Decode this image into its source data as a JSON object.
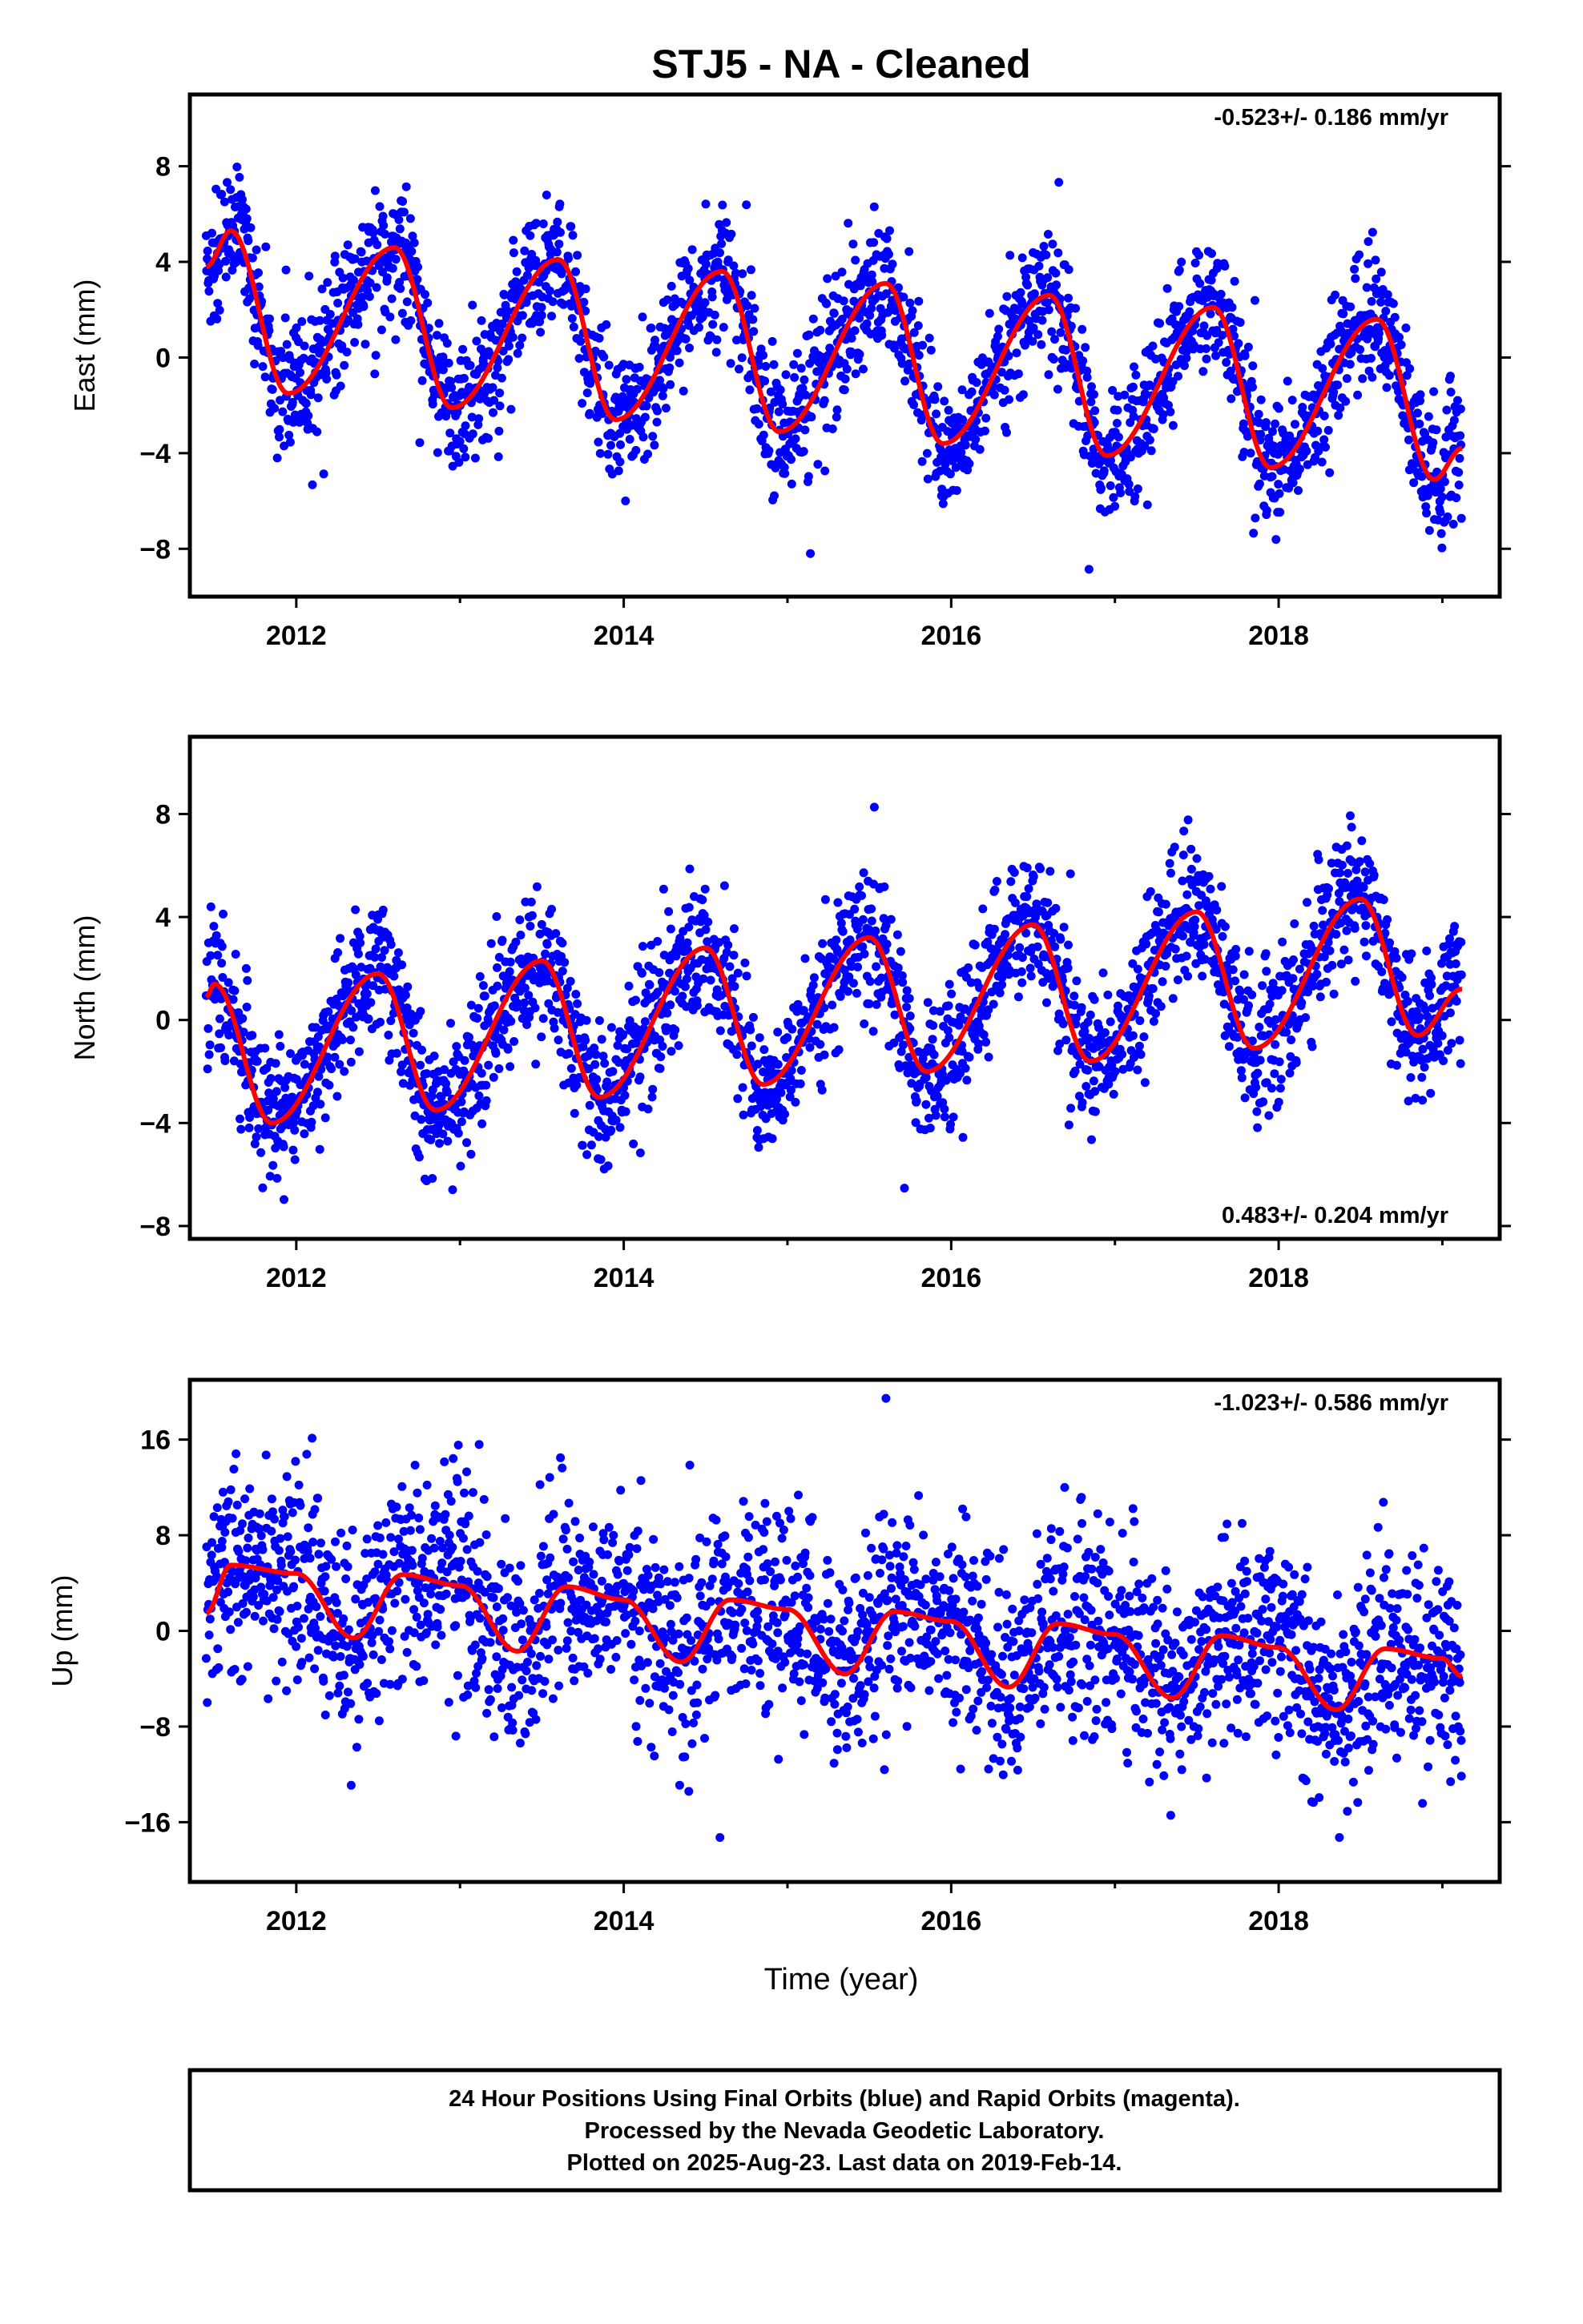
{
  "title": "STJ5  - NA - Cleaned",
  "colors": {
    "points": "#0000ff",
    "model": "#ff0000",
    "frame": "#000000"
  },
  "xaxis": {
    "label": "Time (year)",
    "range": [
      2011.35,
      2019.35
    ],
    "ticks": [
      2012,
      2014,
      2016,
      2018
    ],
    "tick_labels": [
      "2012",
      "2014",
      "2016",
      "2018"
    ]
  },
  "panels": [
    {
      "component": "east",
      "ylabel": "East (mm)",
      "ylim": [
        -10,
        11
      ],
      "yticks": [
        -8,
        -4,
        0,
        4,
        8
      ],
      "ytick_labels": [
        "−8",
        "−4",
        "0",
        "4",
        "8"
      ],
      "rate": "-0.523+/- 0.186 mm/yr",
      "rate_position": "top-right"
    },
    {
      "component": "north",
      "ylabel": "North (mm)",
      "ylim": [
        -8.5,
        11
      ],
      "yticks": [
        -8,
        -4,
        0,
        4,
        8
      ],
      "ytick_labels": [
        "−8",
        "−4",
        "0",
        "4",
        "8"
      ],
      "rate": "0.483+/- 0.204 mm/yr",
      "rate_position": "bottom-right"
    },
    {
      "component": "up",
      "ylabel": "Up (mm)",
      "ylim": [
        -21,
        21
      ],
      "yticks": [
        -16,
        -8,
        0,
        8,
        16
      ],
      "ytick_labels": [
        "−16",
        "−8",
        "0",
        "8",
        "16"
      ],
      "rate": "-1.023+/- 0.586 mm/yr",
      "rate_position": "top-right"
    }
  ],
  "footer": {
    "line1": "24 Hour Positions Using Final Orbits (blue) and Rapid Orbits (magenta).",
    "line2": "Processed by the Nevada Geodetic Laboratory.",
    "line3": "Plotted on 2025-Aug-23. Last data on 2019-Feb-14."
  },
  "chart_data": {
    "type": "scatter",
    "x_range": [
      2011.45,
      2019.12
    ],
    "series": [
      {
        "component": "east",
        "model_x": [
          2011.45,
          2011.6,
          2011.95,
          2012.6,
          2012.95,
          2013.6,
          2013.95,
          2014.6,
          2014.95,
          2015.6,
          2015.95,
          2016.6,
          2016.95,
          2017.6,
          2017.95,
          2018.6,
          2018.95,
          2019.12
        ],
        "model_y": [
          3.8,
          5.3,
          -1.5,
          4.6,
          -2.1,
          4.1,
          -2.6,
          3.6,
          -3.1,
          3.1,
          -3.6,
          2.6,
          -4.1,
          2.1,
          -4.6,
          1.6,
          -5.1,
          -3.8
        ],
        "scatter_sd": 1.35
      },
      {
        "component": "north",
        "model_x": [
          2011.45,
          2011.5,
          2011.85,
          2012.5,
          2012.85,
          2013.5,
          2013.85,
          2014.5,
          2014.85,
          2015.5,
          2015.85,
          2016.5,
          2016.85,
          2017.5,
          2017.85,
          2018.5,
          2018.85,
          2019.12
        ],
        "model_y": [
          0.9,
          1.4,
          -4.0,
          1.8,
          -3.5,
          2.3,
          -3.0,
          2.8,
          -2.5,
          3.2,
          -2.0,
          3.7,
          -1.6,
          4.2,
          -1.1,
          4.7,
          -0.6,
          1.2
        ],
        "scatter_sd": 1.35
      },
      {
        "component": "up",
        "model_x": [
          2011.45,
          2011.6,
          2012.0,
          2012.35,
          2012.65,
          2013.0,
          2013.35,
          2013.65,
          2014.0,
          2014.35,
          2014.65,
          2015.0,
          2015.35,
          2015.65,
          2016.0,
          2016.35,
          2016.65,
          2017.0,
          2017.35,
          2017.65,
          2018.0,
          2018.35,
          2018.65,
          2019.0,
          2019.12
        ],
        "model_y": [
          1.5,
          5.5,
          4.8,
          -0.6,
          4.7,
          3.8,
          -1.7,
          3.7,
          2.6,
          -2.6,
          2.6,
          1.8,
          -3.6,
          1.6,
          0.8,
          -4.7,
          0.6,
          -0.3,
          -5.6,
          -0.4,
          -1.4,
          -6.6,
          -1.5,
          -2.3,
          -3.8
        ],
        "scatter_sd": 4.2
      }
    ]
  }
}
